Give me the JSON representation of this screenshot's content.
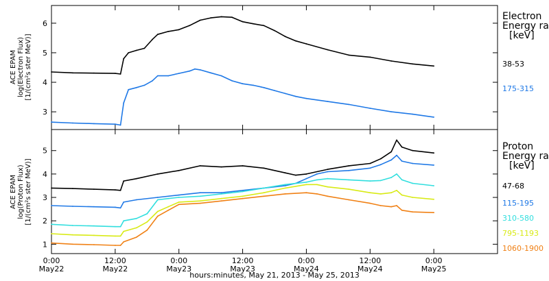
{
  "chart_data": [
    {
      "type": "line",
      "ylabel_lines": [
        "ACE EPAM",
        "log(Electron Flux)",
        "[1/(cm²s ster MeV)]"
      ],
      "y_ticks": [
        "3",
        "4",
        "5",
        "6"
      ],
      "ylim": [
        2.4,
        6.6
      ],
      "xlim": [
        0,
        84
      ],
      "legend_title_lines": [
        "Electron",
        "Energy ranges"
      ],
      "legend_unit": "[keV]",
      "series": [
        {
          "name": "38-53",
          "color": "#000000",
          "points": [
            [
              0,
              4.35
            ],
            [
              4,
              4.32
            ],
            [
              8,
              4.31
            ],
            [
              12,
              4.3
            ],
            [
              13,
              4.28
            ],
            [
              13.6,
              4.8
            ],
            [
              14.5,
              5.0
            ],
            [
              16,
              5.08
            ],
            [
              17.5,
              5.15
            ],
            [
              19,
              5.45
            ],
            [
              20,
              5.62
            ],
            [
              22,
              5.72
            ],
            [
              24,
              5.78
            ],
            [
              26,
              5.92
            ],
            [
              28,
              6.1
            ],
            [
              30,
              6.18
            ],
            [
              32,
              6.22
            ],
            [
              34,
              6.2
            ],
            [
              36,
              6.05
            ],
            [
              38,
              5.98
            ],
            [
              40,
              5.92
            ],
            [
              42,
              5.75
            ],
            [
              44,
              5.55
            ],
            [
              46,
              5.4
            ],
            [
              48,
              5.3
            ],
            [
              52,
              5.1
            ],
            [
              56,
              4.92
            ],
            [
              60,
              4.85
            ],
            [
              64,
              4.72
            ],
            [
              68,
              4.62
            ],
            [
              72,
              4.55
            ]
          ]
        },
        {
          "name": "175-315",
          "color": "#1e78e6",
          "points": [
            [
              0,
              2.65
            ],
            [
              4,
              2.62
            ],
            [
              8,
              2.6
            ],
            [
              12,
              2.58
            ],
            [
              13,
              2.55
            ],
            [
              13.6,
              3.3
            ],
            [
              14.5,
              3.75
            ],
            [
              16,
              3.82
            ],
            [
              17.5,
              3.9
            ],
            [
              19,
              4.05
            ],
            [
              20,
              4.22
            ],
            [
              22,
              4.22
            ],
            [
              24,
              4.3
            ],
            [
              26,
              4.38
            ],
            [
              27,
              4.45
            ],
            [
              28,
              4.42
            ],
            [
              30,
              4.32
            ],
            [
              32,
              4.22
            ],
            [
              34,
              4.05
            ],
            [
              36,
              3.95
            ],
            [
              38,
              3.9
            ],
            [
              40,
              3.82
            ],
            [
              42,
              3.72
            ],
            [
              44,
              3.62
            ],
            [
              46,
              3.52
            ],
            [
              48,
              3.45
            ],
            [
              52,
              3.35
            ],
            [
              56,
              3.25
            ],
            [
              60,
              3.12
            ],
            [
              64,
              3.0
            ],
            [
              68,
              2.92
            ],
            [
              72,
              2.82
            ]
          ]
        }
      ],
      "annotations": []
    },
    {
      "type": "line",
      "ylabel_lines": [
        "ACE EPAM",
        "log(Proton Flux)",
        "[1/(cm²s ster MeV)]"
      ],
      "y_ticks": [
        "1",
        "2",
        "3",
        "4",
        "5"
      ],
      "ylim": [
        0.6,
        5.9
      ],
      "xlim": [
        0,
        84
      ],
      "legend_title_lines": [
        "Proton",
        "Energy ranges"
      ],
      "legend_unit": "[keV]",
      "x_ticks": [
        {
          "x": 0,
          "label": "0:00",
          "date": "May22"
        },
        {
          "x": 12,
          "label": "12:00",
          "date": "May22"
        },
        {
          "x": 24,
          "label": "0:00",
          "date": "May23"
        },
        {
          "x": 36,
          "label": "12:00",
          "date": "May23"
        },
        {
          "x": 48,
          "label": "0:00",
          "date": "May24"
        },
        {
          "x": 60,
          "label": "12:00",
          "date": "May24"
        },
        {
          "x": 72,
          "label": "0:00",
          "date": "May25"
        }
      ],
      "xlabel": "hours:minutes, May 21, 2013 - May 25, 2013",
      "series": [
        {
          "name": "47-68",
          "color": "#000000",
          "points": [
            [
              0,
              3.4
            ],
            [
              4,
              3.38
            ],
            [
              8,
              3.35
            ],
            [
              12,
              3.32
            ],
            [
              13,
              3.3
            ],
            [
              13.6,
              3.7
            ],
            [
              16,
              3.8
            ],
            [
              20,
              4.0
            ],
            [
              24,
              4.15
            ],
            [
              28,
              4.35
            ],
            [
              32,
              4.3
            ],
            [
              36,
              4.35
            ],
            [
              40,
              4.25
            ],
            [
              44,
              4.05
            ],
            [
              46,
              3.95
            ],
            [
              48,
              4.0
            ],
            [
              52,
              4.2
            ],
            [
              56,
              4.35
            ],
            [
              60,
              4.45
            ],
            [
              62,
              4.65
            ],
            [
              64,
              4.95
            ],
            [
              65,
              5.45
            ],
            [
              66,
              5.15
            ],
            [
              68,
              5.0
            ],
            [
              72,
              4.9
            ]
          ]
        },
        {
          "name": "115-195",
          "color": "#1e78e6",
          "points": [
            [
              0,
              2.65
            ],
            [
              4,
              2.62
            ],
            [
              8,
              2.6
            ],
            [
              12,
              2.58
            ],
            [
              13,
              2.55
            ],
            [
              13.6,
              2.8
            ],
            [
              16,
              2.9
            ],
            [
              20,
              3.0
            ],
            [
              24,
              3.1
            ],
            [
              28,
              3.2
            ],
            [
              32,
              3.2
            ],
            [
              36,
              3.3
            ],
            [
              40,
              3.4
            ],
            [
              44,
              3.5
            ],
            [
              46,
              3.6
            ],
            [
              48,
              3.8
            ],
            [
              50,
              4.0
            ],
            [
              52,
              4.1
            ],
            [
              56,
              4.15
            ],
            [
              60,
              4.25
            ],
            [
              62,
              4.4
            ],
            [
              64,
              4.6
            ],
            [
              65,
              4.8
            ],
            [
              66,
              4.55
            ],
            [
              68,
              4.45
            ],
            [
              72,
              4.38
            ]
          ]
        },
        {
          "name": "310-580",
          "color": "#30dede",
          "points": [
            [
              0,
              1.85
            ],
            [
              4,
              1.8
            ],
            [
              8,
              1.78
            ],
            [
              12,
              1.75
            ],
            [
              13,
              1.75
            ],
            [
              13.6,
              2.0
            ],
            [
              16,
              2.1
            ],
            [
              18,
              2.3
            ],
            [
              20,
              2.9
            ],
            [
              22,
              2.95
            ],
            [
              24,
              3.0
            ],
            [
              28,
              3.05
            ],
            [
              32,
              3.15
            ],
            [
              36,
              3.25
            ],
            [
              40,
              3.4
            ],
            [
              44,
              3.55
            ],
            [
              48,
              3.65
            ],
            [
              50,
              3.75
            ],
            [
              52,
              3.8
            ],
            [
              56,
              3.75
            ],
            [
              60,
              3.7
            ],
            [
              62,
              3.72
            ],
            [
              64,
              3.85
            ],
            [
              65,
              4.0
            ],
            [
              66,
              3.75
            ],
            [
              68,
              3.6
            ],
            [
              72,
              3.5
            ]
          ]
        },
        {
          "name": "795-1193",
          "color": "#d8ea14",
          "points": [
            [
              0,
              1.45
            ],
            [
              4,
              1.4
            ],
            [
              8,
              1.38
            ],
            [
              12,
              1.35
            ],
            [
              13,
              1.35
            ],
            [
              13.6,
              1.55
            ],
            [
              16,
              1.7
            ],
            [
              18,
              1.95
            ],
            [
              20,
              2.4
            ],
            [
              22,
              2.6
            ],
            [
              24,
              2.8
            ],
            [
              28,
              2.85
            ],
            [
              32,
              2.95
            ],
            [
              36,
              3.05
            ],
            [
              40,
              3.2
            ],
            [
              44,
              3.4
            ],
            [
              48,
              3.55
            ],
            [
              50,
              3.55
            ],
            [
              52,
              3.45
            ],
            [
              56,
              3.35
            ],
            [
              60,
              3.2
            ],
            [
              62,
              3.15
            ],
            [
              64,
              3.2
            ],
            [
              65,
              3.3
            ],
            [
              66,
              3.1
            ],
            [
              68,
              3.0
            ],
            [
              72,
              2.92
            ]
          ]
        },
        {
          "name": "1060-1900",
          "color": "#f08014",
          "points": [
            [
              0,
              1.05
            ],
            [
              4,
              1.0
            ],
            [
              8,
              0.98
            ],
            [
              12,
              0.95
            ],
            [
              13,
              0.95
            ],
            [
              13.6,
              1.1
            ],
            [
              16,
              1.3
            ],
            [
              18,
              1.6
            ],
            [
              20,
              2.2
            ],
            [
              22,
              2.45
            ],
            [
              24,
              2.7
            ],
            [
              28,
              2.75
            ],
            [
              32,
              2.85
            ],
            [
              36,
              2.95
            ],
            [
              40,
              3.05
            ],
            [
              44,
              3.15
            ],
            [
              48,
              3.2
            ],
            [
              50,
              3.15
            ],
            [
              52,
              3.05
            ],
            [
              56,
              2.9
            ],
            [
              60,
              2.75
            ],
            [
              62,
              2.65
            ],
            [
              64,
              2.6
            ],
            [
              65,
              2.65
            ],
            [
              66,
              2.45
            ],
            [
              68,
              2.38
            ],
            [
              72,
              2.35
            ]
          ]
        }
      ],
      "annotations": []
    }
  ]
}
